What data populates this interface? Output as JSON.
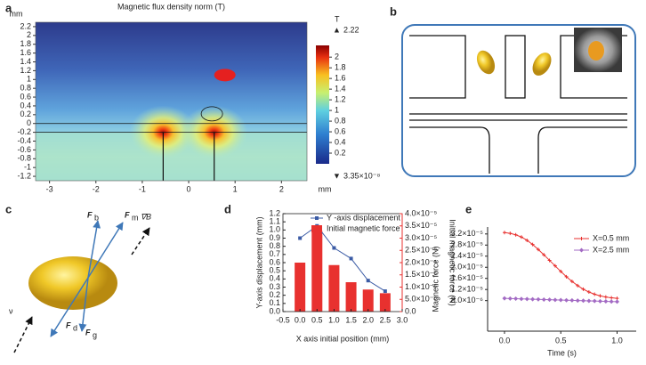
{
  "panel_labels": [
    "a",
    "b",
    "c",
    "d",
    "e"
  ],
  "force_labels": [
    [
      "F",
      "b"
    ],
    [
      "F",
      "m"
    ],
    [
      "F",
      "d"
    ],
    [
      "F",
      "g"
    ]
  ],
  "gradient_label": "∇B",
  "velocity_label": "ν",
  "chart_data": [
    {
      "type": "heatmap",
      "title": "Magnetic flux density norm (T)",
      "x_unit": "mm",
      "y_unit": "mm",
      "xlim": [
        -3.3,
        2.55
      ],
      "xticks": [
        -3,
        -2,
        -1,
        0,
        1,
        2
      ],
      "ylim": [
        -1.3,
        2.3
      ],
      "yticks": [
        -1.2,
        -1,
        -0.8,
        -0.6,
        -0.4,
        -0.2,
        0,
        0.2,
        0.4,
        0.6,
        0.8,
        1,
        1.2,
        1.4,
        1.6,
        1.8,
        2,
        2.2
      ],
      "colorbar_unit": "T",
      "colorbar_max": 2.22,
      "colorbar_min": {
        "value": 3.35e-08,
        "label": "3.35×10⁻⁸"
      },
      "colorbar_ticks": [
        0.2,
        0.4,
        0.6,
        0.8,
        1,
        1.2,
        1.4,
        1.6,
        1.8,
        2
      ]
    },
    {
      "type": "bar-line",
      "x_label": "X axis initial position (mm)",
      "y_label": "Y-axis displacement (mm)",
      "y2_label": "Initial magnetic force (N)",
      "x": [
        0,
        0.5,
        1,
        1.5,
        2,
        2.5
      ],
      "xlim": [
        -0.5,
        3
      ],
      "xticks": [
        -0.5,
        {
          "value": 0,
          "label": "0.0"
        },
        0.5,
        {
          "value": 1,
          "label": "1.0"
        },
        1.5,
        {
          "value": 2,
          "label": "2.0"
        },
        2.5,
        {
          "value": 3,
          "label": "3.0"
        }
      ],
      "ylim": [
        0,
        1.2
      ],
      "yticks": [
        {
          "value": 0,
          "label": "0.0"
        },
        0.1,
        0.2,
        0.3,
        0.4,
        0.5,
        0.6,
        0.7,
        0.8,
        0.9,
        {
          "value": 1,
          "label": "1.0"
        },
        1.1,
        1.2
      ],
      "y2lim": [
        0,
        4e-05
      ],
      "y2ticks": [
        {
          "value": 0,
          "label": "0.0"
        },
        {
          "value": 5e-06,
          "label": "5.0×10⁻⁶"
        },
        {
          "value": 1e-05,
          "label": "1.0×10⁻⁵"
        },
        {
          "value": 1.5e-05,
          "label": "1.5×10⁻⁵"
        },
        {
          "value": 2e-05,
          "label": "2.0×10⁻⁵"
        },
        {
          "value": 2.5e-05,
          "label": "2.5×10⁻⁵"
        },
        {
          "value": 3e-05,
          "label": "3.0×10⁻⁵"
        },
        {
          "value": 3.5e-05,
          "label": "3.5×10⁻⁵"
        },
        {
          "value": 4e-05,
          "label": "4.0×10⁻⁵"
        }
      ],
      "series": [
        {
          "name": "Y -axis displacement",
          "type": "line",
          "color": "#3b5ba5",
          "values": [
            0.9,
            1.05,
            0.78,
            0.65,
            0.38,
            0.25
          ]
        },
        {
          "name": "Initial magnetic force",
          "type": "bar",
          "axis": "y2",
          "color": "#e8312f",
          "values": [
            2e-05,
            3.3e-05,
            1.9e-05,
            1.2e-05,
            9e-06,
            7.5e-06
          ]
        }
      ]
    },
    {
      "type": "line",
      "x_label": "Time (s)",
      "y_label": "Magnetic force (N)",
      "x": [
        0,
        0.05,
        0.1,
        0.15,
        0.2,
        0.25,
        0.3,
        0.35,
        0.4,
        0.45,
        0.5,
        0.55,
        0.6,
        0.65,
        0.7,
        0.75,
        0.8,
        0.85,
        0.9,
        0.95,
        1
      ],
      "xlim": [
        -0.15,
        1.17
      ],
      "xticks": [
        {
          "value": 0,
          "label": "0.0"
        },
        0.5,
        {
          "value": 1,
          "label": "1.0"
        }
      ],
      "ylim": [
        -3e-06,
        3.45e-05
      ],
      "yticks": [
        {
          "value": 8e-06,
          "label": "8.0×10⁻⁶"
        },
        {
          "value": 1.2e-05,
          "label": "1.2×10⁻⁵"
        },
        {
          "value": 1.6e-05,
          "label": "1.6×10⁻⁵"
        },
        {
          "value": 2e-05,
          "label": "2.0×10⁻⁵"
        },
        {
          "value": 2.4e-05,
          "label": "2.4×10⁻⁵"
        },
        {
          "value": 2.8e-05,
          "label": "2.8×10⁻⁵"
        },
        {
          "value": 3.2e-05,
          "label": "3.2×10⁻⁵"
        }
      ],
      "series": [
        {
          "name": "X=0.5 mm",
          "color": "#e8312f",
          "values": [
            3.25e-05,
            3.22e-05,
            3.17e-05,
            3.09e-05,
            2.97e-05,
            2.82e-05,
            2.64e-05,
            2.45e-05,
            2.25e-05,
            2.05e-05,
            1.85e-05,
            1.66e-05,
            1.49e-05,
            1.34e-05,
            1.21e-05,
            1.11e-05,
            1.03e-05,
            9.7e-06,
            9.3e-06,
            9e-06,
            8.8e-06
          ]
        },
        {
          "name": "X=2.5 mm",
          "color": "#a36bc4",
          "values": [
            8.8e-06,
            8.74e-06,
            8.68e-06,
            8.62e-06,
            8.56e-06,
            8.5e-06,
            8.44e-06,
            8.38e-06,
            8.32e-06,
            8.26e-06,
            8.2e-06,
            8.14e-06,
            8.08e-06,
            8.02e-06,
            7.96e-06,
            7.9e-06,
            7.84e-06,
            7.78e-06,
            7.72e-06,
            7.66e-06,
            7.6e-06
          ]
        }
      ]
    }
  ]
}
